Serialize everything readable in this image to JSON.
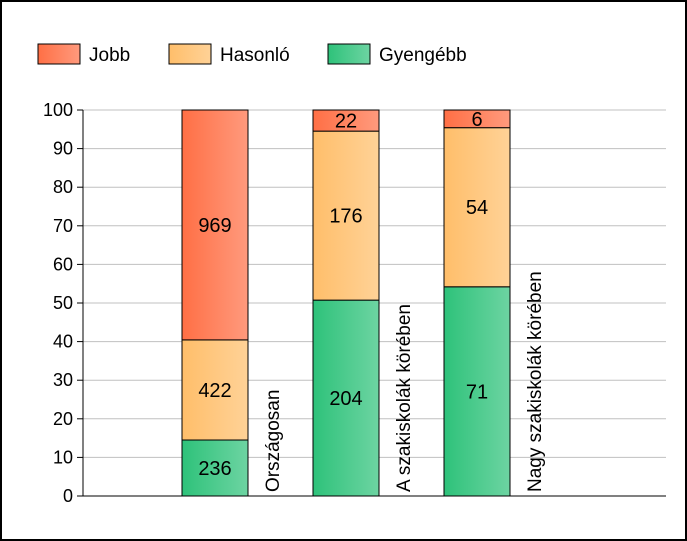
{
  "chart_data": {
    "type": "bar",
    "stacked": "percent",
    "categories": [
      "Országosan",
      "A szakiskolák körében",
      "Nagy szakiskolák körében"
    ],
    "series": [
      {
        "name": "Gyengébb",
        "values": [
          236,
          204,
          71
        ],
        "color": "#2ec27a"
      },
      {
        "name": "Hasonló",
        "values": [
          422,
          176,
          54
        ],
        "color": "#ffbe6a"
      },
      {
        "name": "Jobb",
        "values": [
          969,
          22,
          6
        ],
        "color": "#ff6f45"
      }
    ],
    "ylim": [
      0,
      100
    ],
    "yticks": [
      0,
      10,
      20,
      30,
      40,
      50,
      60,
      70,
      80,
      90,
      100
    ],
    "grid": true,
    "legend": "top-left",
    "legend_order": [
      "Jobb",
      "Hasonló",
      "Gyengébb"
    ],
    "category_label_orientation": "vertical"
  }
}
